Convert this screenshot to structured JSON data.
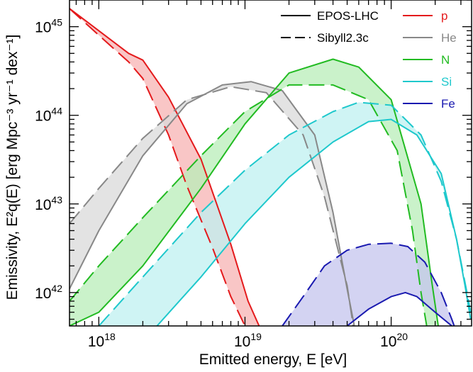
{
  "chart_data": {
    "type": "line",
    "xlabel": "Emitted energy, E  [eV]",
    "ylabel": "Emissivity, E²q(E)  [erg Mpc⁻³ yr⁻¹ dex⁻¹]",
    "xscale": "log",
    "yscale": "log",
    "xlim": [
      6.3e+17,
      3.55e+20
    ],
    "ylim": [
      4.2e+41,
      2e+45
    ],
    "x_ticks": [
      {
        "value": 1e+18,
        "base": "10",
        "exp": "18"
      },
      {
        "value": 1e+19,
        "base": "10",
        "exp": "19"
      },
      {
        "value": 1e+20,
        "base": "10",
        "exp": "20"
      }
    ],
    "y_ticks": [
      {
        "value": 1e+42,
        "base": "10",
        "exp": "42"
      },
      {
        "value": 1e+43,
        "base": "10",
        "exp": "43"
      },
      {
        "value": 1e+44,
        "base": "10",
        "exp": "44"
      },
      {
        "value": 1e+45,
        "base": "10",
        "exp": "45"
      }
    ],
    "grid": false,
    "legend_models": {
      "placement": "top-right",
      "entries": [
        {
          "label": "EPOS-LHC",
          "style": "solid"
        },
        {
          "label": "Sibyll2.3c",
          "style": "dashed"
        }
      ]
    },
    "legend_species": {
      "placement": "top-right",
      "entries": [
        "p",
        "He",
        "N",
        "Si",
        "Fe"
      ]
    },
    "series": [
      {
        "name": "p",
        "color": "#e41a1c",
        "fill": "#f7b3b3",
        "epos_lhc": [
          [
            6.3e+17,
            1.6e+45
          ],
          [
            1e+18,
            9e+44
          ],
          [
            1.6e+18,
            5e+44
          ],
          [
            2e+18,
            4.2e+44
          ],
          [
            3e+18,
            1.6e+44
          ],
          [
            5e+18,
            3.2e+43
          ],
          [
            8e+18,
            3.5e+42
          ],
          [
            1.05e+19,
            8e+41
          ],
          [
            1.25e+19,
            4.2e+41
          ]
        ],
        "sibyll2_3c": [
          [
            6.3e+17,
            1.6e+45
          ],
          [
            1e+18,
            8e+44
          ],
          [
            1.6e+18,
            4e+44
          ],
          [
            2e+18,
            2.6e+44
          ],
          [
            3e+18,
            6e+43
          ],
          [
            4e+18,
            1.6e+43
          ],
          [
            6e+18,
            3.2e+42
          ],
          [
            8e+18,
            9e+41
          ],
          [
            1e+19,
            4.2e+41
          ]
        ]
      },
      {
        "name": "He",
        "color": "#888888",
        "fill": "#d9d9d9",
        "epos_lhc": [
          [
            6.3e+17,
            1.1e+42
          ],
          [
            1e+18,
            5e+42
          ],
          [
            2e+18,
            3.5e+43
          ],
          [
            4e+18,
            1.35e+44
          ],
          [
            7e+18,
            2.2e+44
          ],
          [
            1.1e+19,
            2.4e+44
          ],
          [
            1.8e+19,
            1.9e+44
          ],
          [
            3e+19,
            6e+43
          ],
          [
            4e+19,
            8e+42
          ],
          [
            5e+19,
            1.1e+42
          ],
          [
            5.6e+19,
            4.2e+41
          ]
        ],
        "sibyll2_3c": [
          [
            6.3e+17,
            6e+42
          ],
          [
            1e+18,
            1.5e+43
          ],
          [
            2e+18,
            5.5e+43
          ],
          [
            4e+18,
            1.5e+44
          ],
          [
            8e+18,
            2.1e+44
          ],
          [
            1.4e+19,
            1.8e+44
          ],
          [
            2.5e+19,
            6e+43
          ],
          [
            3.5e+19,
            1.2e+43
          ],
          [
            5e+19,
            1.2e+42
          ],
          [
            5.5e+19,
            4.2e+41
          ]
        ]
      },
      {
        "name": "N",
        "color": "#22bb22",
        "fill": "#b8eeb8",
        "epos_lhc": [
          [
            6.3e+17,
            4.2e+41
          ],
          [
            1e+18,
            6e+41
          ],
          [
            2e+18,
            2e+42
          ],
          [
            5e+18,
            1.5e+43
          ],
          [
            1e+19,
            8e+43
          ],
          [
            2e+19,
            3e+44
          ],
          [
            4e+19,
            4.3e+44
          ],
          [
            6e+19,
            3.5e+44
          ],
          [
            1e+20,
            1.5e+44
          ],
          [
            1.6e+20,
            1e+43
          ],
          [
            1.9e+20,
            1.3e+42
          ],
          [
            2.1e+20,
            4.2e+41
          ]
        ],
        "sibyll2_3c": [
          [
            6.3e+17,
            8e+41
          ],
          [
            1e+18,
            2e+42
          ],
          [
            2e+18,
            7e+42
          ],
          [
            5e+18,
            3.5e+43
          ],
          [
            1e+19,
            1.1e+44
          ],
          [
            2e+19,
            2.2e+44
          ],
          [
            4e+19,
            2.2e+44
          ],
          [
            7e+19,
            1.5e+44
          ],
          [
            1.1e+20,
            4e+43
          ],
          [
            1.4e+20,
            5e+42
          ],
          [
            1.6e+20,
            1e+42
          ],
          [
            1.75e+20,
            4.2e+41
          ]
        ]
      },
      {
        "name": "Si",
        "color": "#1ec8cc",
        "fill": "#bff0f0",
        "epos_lhc": [
          [
            2.5e+18,
            4.2e+41
          ],
          [
            5e+18,
            1.5e+42
          ],
          [
            1e+19,
            6e+42
          ],
          [
            2e+19,
            2e+43
          ],
          [
            4e+19,
            5e+43
          ],
          [
            7e+19,
            8.5e+43
          ],
          [
            1e+20,
            9e+43
          ],
          [
            1.5e+20,
            6e+43
          ],
          [
            2.2e+20,
            2.2e+43
          ],
          [
            2.8e+20,
            4e+42
          ],
          [
            3.2e+20,
            1.2e+42
          ],
          [
            3.5e+20,
            5e+41
          ]
        ],
        "sibyll2_3c": [
          [
            1e+18,
            4.2e+41
          ],
          [
            2e+18,
            1.5e+42
          ],
          [
            5e+18,
            8e+42
          ],
          [
            1e+19,
            2.4e+43
          ],
          [
            2e+19,
            6e+43
          ],
          [
            4e+19,
            1.1e+44
          ],
          [
            6e+19,
            1.4e+44
          ],
          [
            1e+20,
            1.3e+44
          ],
          [
            1.6e+20,
            6e+43
          ],
          [
            2.2e+20,
            1.8e+43
          ],
          [
            2.8e+20,
            4e+42
          ],
          [
            3.3e+20,
            1e+42
          ],
          [
            3.5e+20,
            6e+41
          ]
        ]
      },
      {
        "name": "Fe",
        "color": "#1a1ab0",
        "fill": "#c4c4ee",
        "epos_lhc": [
          [
            5e+19,
            4.2e+41
          ],
          [
            7e+19,
            6.5e+41
          ],
          [
            1e+20,
            9e+41
          ],
          [
            1.25e+20,
            1e+42
          ],
          [
            1.5e+20,
            9e+41
          ],
          [
            2e+20,
            6e+41
          ],
          [
            2.6e+20,
            4.2e+41
          ]
        ],
        "sibyll2_3c": [
          [
            1.8e+19,
            4.2e+41
          ],
          [
            2.5e+19,
            9e+41
          ],
          [
            3.5e+19,
            2e+42
          ],
          [
            5e+19,
            3e+42
          ],
          [
            7e+19,
            3.5e+42
          ],
          [
            1e+20,
            3.6e+42
          ],
          [
            1.3e+20,
            3.3e+42
          ],
          [
            1.7e+20,
            2.2e+42
          ],
          [
            2.2e+20,
            1e+42
          ],
          [
            2.6e+20,
            5e+41
          ],
          [
            2.7e+20,
            4.2e+41
          ]
        ]
      }
    ]
  }
}
